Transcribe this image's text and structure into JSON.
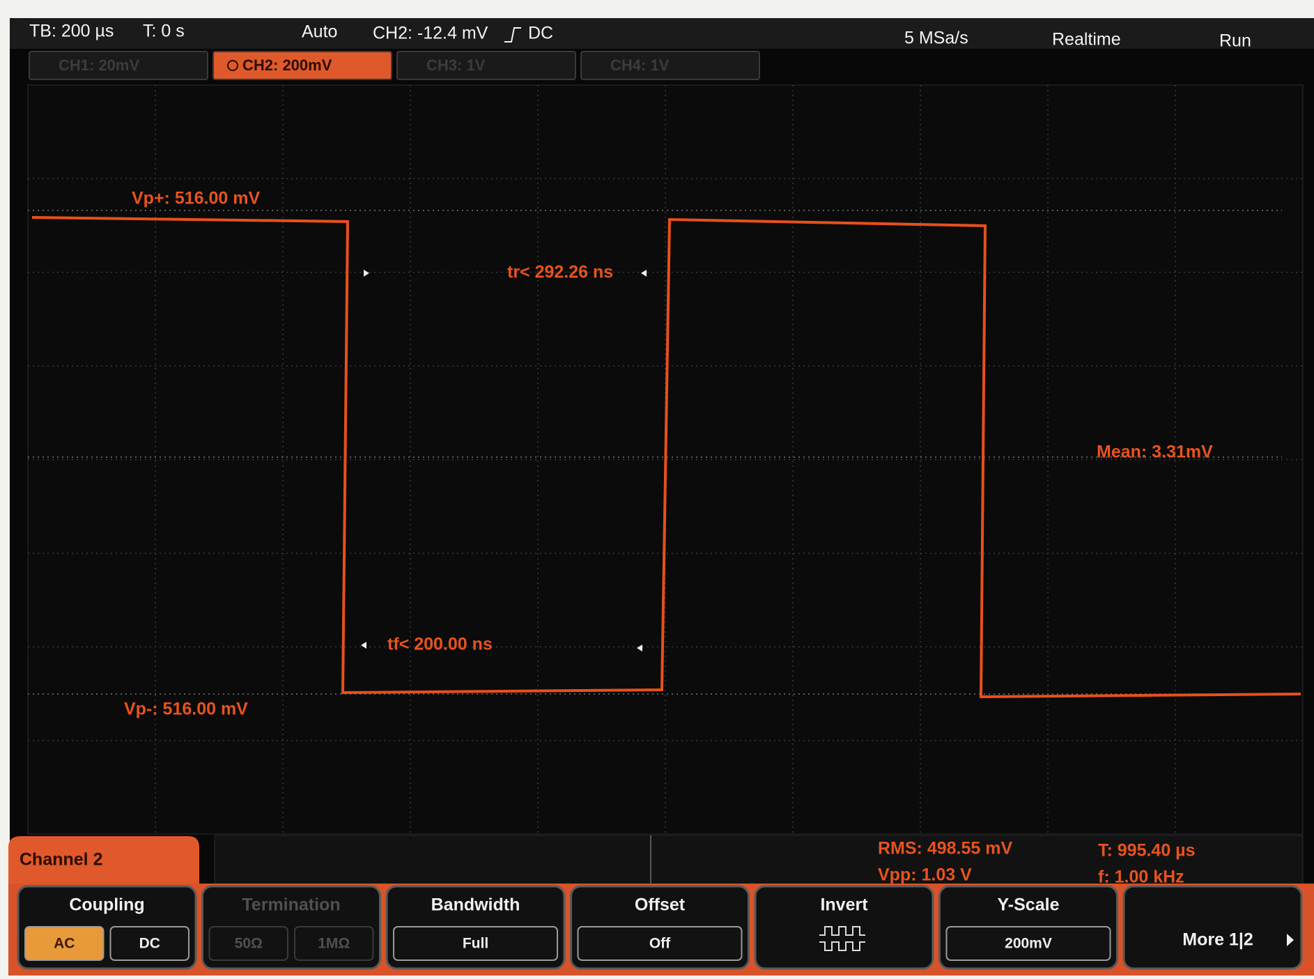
{
  "status_bar": {
    "timebase": "TB: 200 µs",
    "trigger_time": "T: 0 s",
    "trigger_mode": "Auto",
    "trigger_source": "CH2: -12.4 mV",
    "trigger_coupling": "DC",
    "sample_rate": "5 MSa/s",
    "acquisition": "Realtime",
    "run_state": "Run"
  },
  "channel_tabs": [
    {
      "label": "CH1: 20mV",
      "active": false
    },
    {
      "label": "CH2: 200mV",
      "active": true
    },
    {
      "label": "CH3: 1V",
      "active": false
    },
    {
      "label": "CH4: 1V",
      "active": false
    }
  ],
  "measurements": {
    "vp_plus": "Vp+: 516.00 mV",
    "rise_time": "tr< 292.26 ns",
    "mean": "Mean: 3.31mV",
    "fall_time": "tf< 200.00 ns",
    "vp_minus": "Vp-: 516.00 mV"
  },
  "info_panel": {
    "rms": "RMS: 498.55 mV",
    "period": "T: 995.40 µs",
    "vpp": "Vpp: 1.03 V",
    "frequency": "f: 1.00 kHz"
  },
  "menu": {
    "title": "Channel 2",
    "buttons": [
      {
        "label": "Coupling",
        "enabled": true,
        "options": [
          {
            "label": "AC",
            "selected": true
          },
          {
            "label": "DC",
            "selected": false
          }
        ]
      },
      {
        "label": "Termination",
        "enabled": false,
        "options": [
          {
            "label": "50Ω",
            "selected": false
          },
          {
            "label": "1MΩ",
            "selected": false
          }
        ]
      },
      {
        "label": "Bandwidth",
        "enabled": true,
        "options": [
          {
            "label": "Full",
            "selected": false
          }
        ]
      },
      {
        "label": "Offset",
        "enabled": true,
        "options": [
          {
            "label": "Off",
            "selected": false
          }
        ]
      },
      {
        "label": "Invert",
        "enabled": true,
        "options": []
      },
      {
        "label": "Y-Scale",
        "enabled": true,
        "options": [
          {
            "label": "200mV",
            "selected": false
          }
        ]
      },
      {
        "label": "More 1|2",
        "enabled": true,
        "options": []
      }
    ]
  }
}
